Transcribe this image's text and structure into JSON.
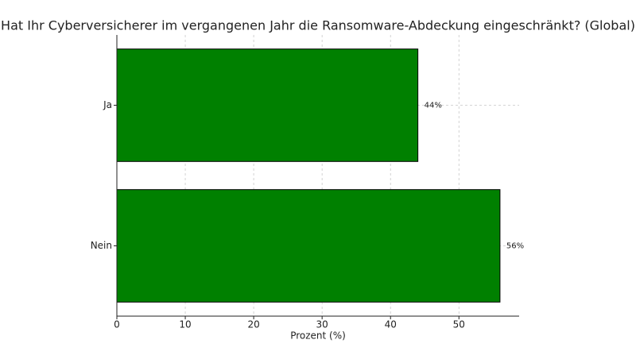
{
  "chart_data": {
    "type": "barh",
    "title": "Hat Ihr Cyberversicherer im vergangenen Jahr die Ransomware-Abdeckung eingeschränkt? (Global)",
    "xlabel": "Prozent (%)",
    "categories": [
      "Ja",
      "Nein"
    ],
    "values": [
      44,
      56
    ],
    "value_labels": [
      "44%",
      "56%"
    ],
    "color": "#008000",
    "xlim": [
      0,
      58.8
    ],
    "xticks": [
      0,
      10,
      20,
      30,
      40,
      50
    ],
    "grid": true
  }
}
